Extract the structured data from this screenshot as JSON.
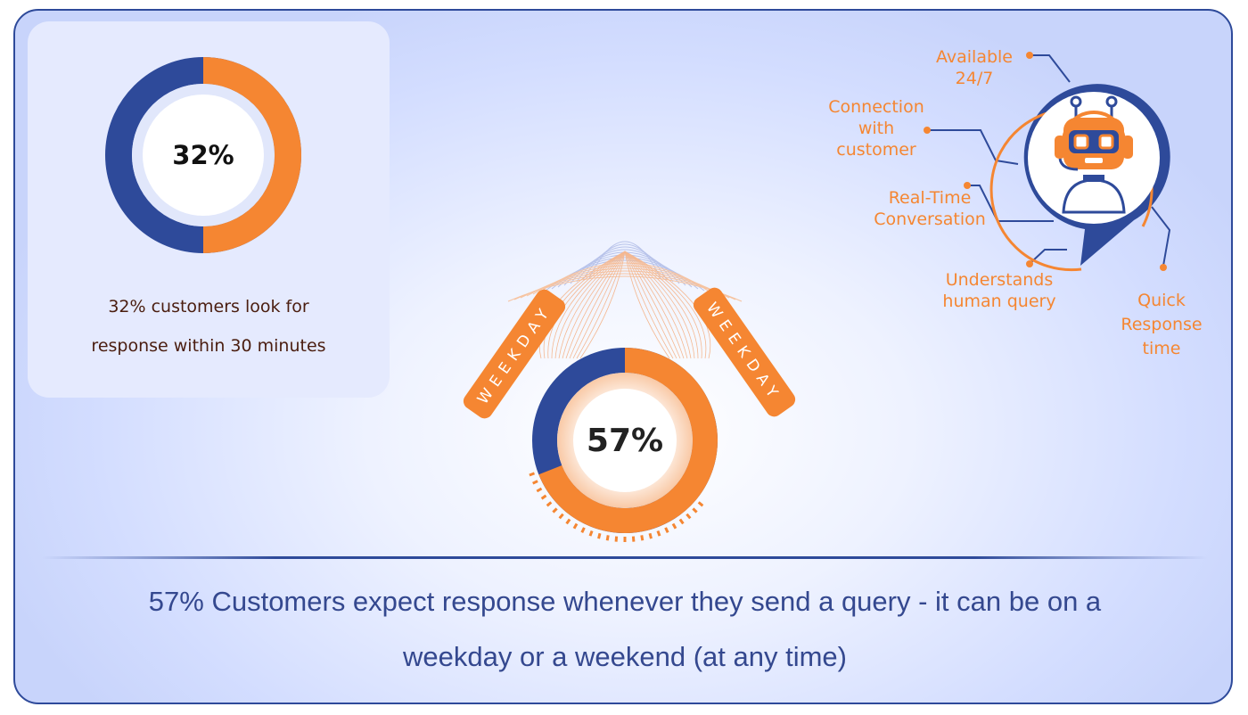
{
  "chart_data": [
    {
      "type": "donut",
      "value": 32,
      "center_label": "32%",
      "caption_lines": [
        "32% customers look for",
        "response within 30 minutes"
      ],
      "colors": {
        "accent": "#f58632",
        "base": "#2e4a9a"
      }
    },
    {
      "type": "donut",
      "value": 57,
      "center_label": "57%",
      "ribbon_labels": [
        "WEEKDAY",
        "WEEKDAY"
      ],
      "colors": {
        "accent": "#f58632",
        "base": "#2e4a9a"
      }
    }
  ],
  "features": [
    "Available\n24/7",
    "Connection\nwith\ncustomer",
    "Real-Time\nConversation",
    "Understands\nhuman query",
    "Quick\nResponse\ntime"
  ],
  "footer_lines": [
    "57% Customers expect response whenever they send a query - it can be on a",
    "weekday or a weekend (at any time)"
  ],
  "icons": {
    "bot": "robot-headset-icon"
  }
}
